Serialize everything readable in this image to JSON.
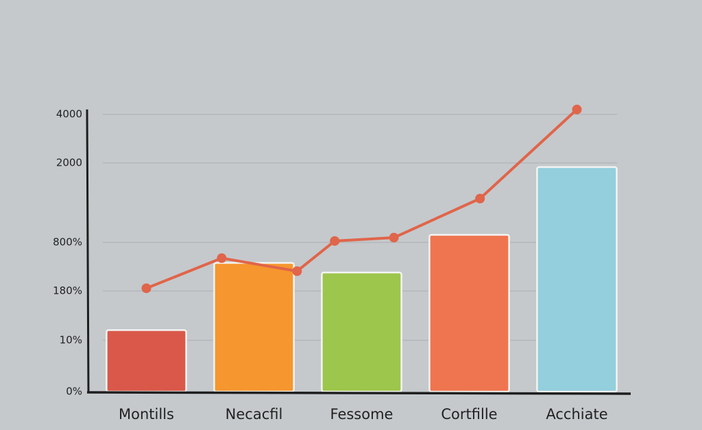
{
  "chart_data": {
    "type": "bar",
    "categories": [
      "Montills",
      "Necacfil",
      "Fessome",
      "Cortfille",
      "Acchiate"
    ],
    "series": [
      {
        "type": "bar",
        "colors": [
          "#d9584a",
          "#f6962e",
          "#9dc64c",
          "#ee7550",
          "#93cfdc"
        ],
        "values": [
          45,
          538,
          416,
          914,
          1938
        ]
      },
      {
        "type": "line",
        "color": "#e0654a",
        "x": [
          0,
          0.7,
          1.4,
          1.75,
          2.3,
          3.1,
          4
        ],
        "values": [
          215,
          599,
          433,
          821,
          872,
          1462,
          4200
        ]
      }
    ],
    "ylim": [
      0,
      4200
    ],
    "yticks": [
      {
        "value": 0,
        "label": "0%"
      },
      {
        "value": 10,
        "label": "10%"
      },
      {
        "value": 180,
        "label": "180%"
      },
      {
        "value": 800,
        "label": "800%"
      },
      2000,
      4000
    ],
    "grid": true
  }
}
